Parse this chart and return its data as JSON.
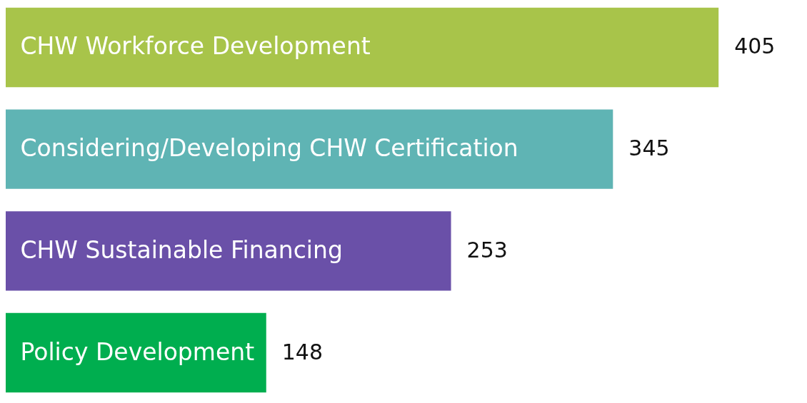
{
  "chart_data": {
    "type": "bar",
    "orientation": "horizontal",
    "categories": [
      "CHW Workforce Development",
      "Considering/Developing CHW Certification",
      "CHW Sustainable Financing",
      "Policy Development"
    ],
    "values": [
      405,
      345,
      253,
      148
    ],
    "colors": [
      "#a8c44a",
      "#5fb4b4",
      "#6a50a8",
      "#00ae4f"
    ],
    "data_labels": true,
    "tick_labels": "y"
  }
}
